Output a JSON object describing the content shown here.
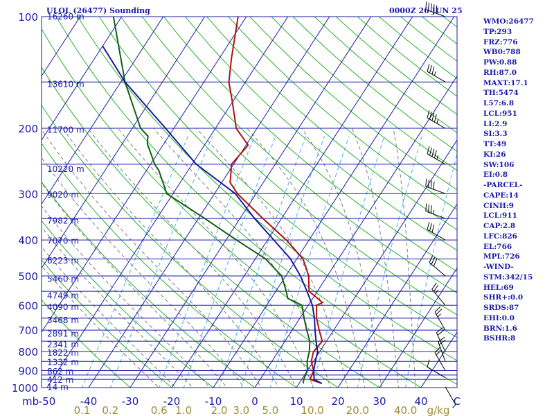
{
  "header": {
    "title": "ULOL (26477) Sounding",
    "valid_time": "0000Z 26 JUN 25"
  },
  "indices": [
    "WMO:26477",
    "TP:293",
    "FRZ:776",
    "WB0:788",
    "PW:0.88",
    "RH:87.0",
    "MAXT:17.1",
    "TH:5474",
    "L57:6.8",
    "LCL:951",
    "LI:2.9",
    "SI:3.3",
    "TT:49",
    "KI:26",
    "SW:106",
    "EI:0.8",
    "-PARCEL-",
    "CAPE:14",
    "CINH:9",
    "LCL:911",
    "CAP:2.8",
    "LFC:826",
    "EL:766",
    "MPL:726",
    "-WIND-",
    "STM:342/15",
    "HEL:69",
    "SHR+:0.0",
    "SRDS:87",
    "EHI:0.0",
    "BRN:1.6",
    "BSHR:8"
  ],
  "colors": {
    "background": "#ffffff",
    "frame": "#1a1aa8",
    "isobar": "#1a1aa8",
    "isotherm": "#1a1aa8",
    "dry_adiabat": "#28b028",
    "moist_adiabat": "#7a7a7a",
    "mixing_ratio": "#4ab0e8",
    "temperature": "#b01010",
    "dewpoint": "#106010",
    "parcel": "#1818a0",
    "wind_barb": "#000000",
    "pressure_label": "#1a1aa8",
    "height_label": "#1a1aa8",
    "temp_tick_label": "#1a1aa8",
    "mixing_label": "#a08a38"
  },
  "chart_data": {
    "type": "line",
    "title": "ULOL (26477) Sounding",
    "subtitle": "0000Z 26 JUN 25",
    "p_range": [
      1000,
      100
    ],
    "pressure_axis_unit": "mb",
    "pressure_ticks": [
      1000,
      900,
      800,
      700,
      600,
      500,
      400,
      300,
      200,
      100
    ],
    "temperature_ticks": [
      -50,
      -40,
      -30,
      -20,
      -10,
      0,
      10,
      20,
      30,
      40
    ],
    "temperature_tick_labels": [
      "-50",
      "-40",
      "-30",
      "-20",
      "-10",
      "0",
      "10",
      "20",
      "30",
      "40"
    ],
    "temperature_axis_unit": "C",
    "isobars": [
      1000,
      950,
      925,
      900,
      850,
      800,
      750,
      700,
      650,
      600,
      550,
      500,
      450,
      400,
      350,
      300,
      250,
      200,
      150,
      100
    ],
    "height_labels": [
      {
        "p": 998,
        "label": "14 m"
      },
      {
        "p": 953,
        "label": "412 m"
      },
      {
        "p": 905,
        "label": "862 m"
      },
      {
        "p": 855,
        "label": "1332 m"
      },
      {
        "p": 807,
        "label": "1822 m"
      },
      {
        "p": 765,
        "label": "2341 m"
      },
      {
        "p": 717,
        "label": "2891 m"
      },
      {
        "p": 658,
        "label": "3468 m"
      },
      {
        "p": 607,
        "label": "4090 m"
      },
      {
        "p": 565,
        "label": "4749 m"
      },
      {
        "p": 510,
        "label": "5460 m"
      },
      {
        "p": 455,
        "label": "6223 m"
      },
      {
        "p": 402,
        "label": "7070 m"
      },
      {
        "p": 355,
        "label": "7982 m"
      },
      {
        "p": 302,
        "label": "9020 m"
      },
      {
        "p": 258,
        "label": "10220 m"
      },
      {
        "p": 202,
        "label": "11700 m"
      },
      {
        "p": 152,
        "label": "13610 m"
      },
      {
        "p": 100,
        "label": "16260 m"
      }
    ],
    "mixing_ratio_lines": [
      0.1,
      0.2,
      0.6,
      1.0,
      2.0,
      3.0,
      5.0,
      10.0,
      20.0,
      40.0
    ],
    "mixing_ratio_labels": [
      "0.1",
      "0.2",
      "0.6",
      "1.0",
      "2.0",
      "3.0",
      "5.0",
      "10.0",
      "20.0",
      "40.0"
    ],
    "mixing_ratio_unit": "g/kg",
    "series": [
      {
        "points": [
          [
            975,
            15.5
          ],
          [
            950,
            12.0
          ],
          [
            900,
            11.5
          ],
          [
            850,
            9.5
          ],
          [
            800,
            8.5
          ],
          [
            750,
            9.0
          ],
          [
            700,
            6.5
          ],
          [
            650,
            4.0
          ],
          [
            600,
            2.0
          ],
          [
            590,
            3.0
          ],
          [
            550,
            -2.0
          ],
          [
            500,
            -4.5
          ],
          [
            450,
            -8.5
          ],
          [
            400,
            -15.5
          ],
          [
            350,
            -24.5
          ],
          [
            300,
            -34.5
          ],
          [
            280,
            -38.0
          ],
          [
            250,
            -40.5
          ],
          [
            222,
            -39.5
          ],
          [
            200,
            -45.0
          ],
          [
            170,
            -50.0
          ],
          [
            150,
            -54.0
          ],
          [
            130,
            -57.0
          ],
          [
            100,
            -62.0
          ]
        ]
      },
      {
        "points": [
          [
            975,
            11.0
          ],
          [
            950,
            10.5
          ],
          [
            900,
            10.0
          ],
          [
            850,
            8.5
          ],
          [
            800,
            7.5
          ],
          [
            750,
            6.0
          ],
          [
            700,
            3.5
          ],
          [
            650,
            1.0
          ],
          [
            600,
            -1.5
          ],
          [
            575,
            -6.0
          ],
          [
            550,
            -7.5
          ],
          [
            500,
            -11.0
          ],
          [
            450,
            -17.5
          ],
          [
            400,
            -27.5
          ],
          [
            350,
            -38.5
          ],
          [
            300,
            -51.5
          ],
          [
            260,
            -57.0
          ],
          [
            250,
            -59.0
          ],
          [
            220,
            -64.0
          ],
          [
            210,
            -65.0
          ],
          [
            200,
            -68.0
          ],
          [
            150,
            -79.0
          ],
          [
            100,
            -92.0
          ]
        ]
      },
      {
        "points": [
          [
            975,
            15.5
          ],
          [
            950,
            13.0
          ],
          [
            900,
            11.5
          ],
          [
            850,
            10.5
          ],
          [
            800,
            9.5
          ],
          [
            750,
            7.5
          ],
          [
            700,
            5.5
          ],
          [
            650,
            3.5
          ],
          [
            600,
            1.0
          ],
          [
            550,
            -2.5
          ],
          [
            500,
            -6.5
          ],
          [
            450,
            -11.5
          ],
          [
            400,
            -18.5
          ],
          [
            350,
            -26.5
          ],
          [
            300,
            -35.0
          ],
          [
            250,
            -49.0
          ],
          [
            200,
            -62.0
          ],
          [
            150,
            -79.0
          ],
          [
            120,
            -90.0
          ]
        ]
      }
    ],
    "wind_barbs": [
      {
        "p": 995,
        "dir": 150,
        "kt": 5
      },
      {
        "p": 940,
        "dir": 300,
        "kt": 10
      },
      {
        "p": 900,
        "dir": 330,
        "kt": 15
      },
      {
        "p": 850,
        "dir": 340,
        "kt": 20
      },
      {
        "p": 800,
        "dir": 335,
        "kt": 20
      },
      {
        "p": 700,
        "dir": 330,
        "kt": 25
      },
      {
        "p": 600,
        "dir": 320,
        "kt": 25
      },
      {
        "p": 500,
        "dir": 310,
        "kt": 30
      },
      {
        "p": 400,
        "dir": 300,
        "kt": 30
      },
      {
        "p": 350,
        "dir": 290,
        "kt": 35
      },
      {
        "p": 300,
        "dir": 290,
        "kt": 40
      },
      {
        "p": 250,
        "dir": 300,
        "kt": 45
      },
      {
        "p": 200,
        "dir": 300,
        "kt": 45
      },
      {
        "p": 150,
        "dir": 300,
        "kt": 35
      },
      {
        "p": 100,
        "dir": 290,
        "kt": 50
      }
    ]
  }
}
